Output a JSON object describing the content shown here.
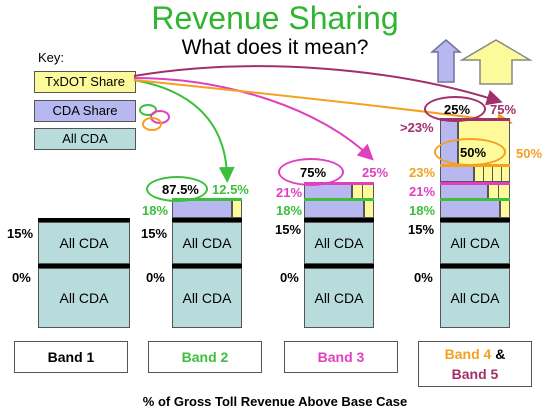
{
  "title": "Revenue Sharing",
  "subtitle": "What does it mean?",
  "key": {
    "label": "Key:",
    "txdot": "TxDOT Share",
    "cda_share": "CDA Share",
    "all_cda": "All CDA"
  },
  "colors": {
    "txdot": "#fdfa9c",
    "cda_share": "#b8b8f0",
    "all_cda": "#b8dcdc",
    "green": "#3cbf3c",
    "magenta": "#e040c0",
    "orange": "#f5a020",
    "purple": "#a0306a"
  },
  "bar_labels": {
    "all_cda": "All CDA"
  },
  "band1": {
    "pct_15": "15%",
    "pct_0": "0%",
    "name": "Band 1"
  },
  "band2": {
    "pct_18": "18%",
    "pct_15": "15%",
    "pct_0": "0%",
    "cda_share": "87.5%",
    "txdot_share": "12.5%",
    "name": "Band 2"
  },
  "band3": {
    "pct_21": "21%",
    "pct_18": "18%",
    "pct_15": "15%",
    "pct_0": "0%",
    "cda_share": "75%",
    "txdot_share": "25%",
    "name": "Band 3"
  },
  "band4": {
    "gt23": ">23%",
    "pct_23": "23%",
    "pct_21": "21%",
    "pct_18": "18%",
    "pct_15": "15%",
    "pct_0": "0%",
    "cda_25": "25%",
    "txdot_75": "75%",
    "cda_50": "50%",
    "txdot_50": "50%",
    "name_a": "Band 4",
    "amp": "&",
    "name_b": "Band 5"
  },
  "footer": "% of Gross Toll Revenue Above Base Case"
}
